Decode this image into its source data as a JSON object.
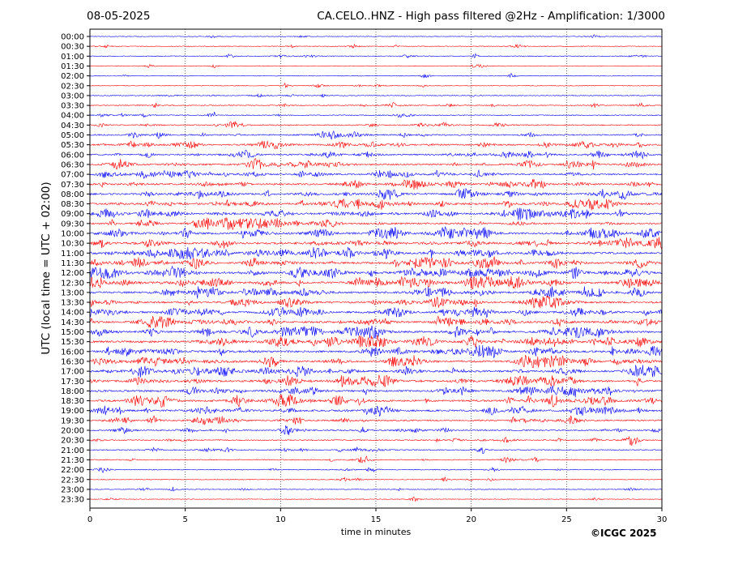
{
  "header": {
    "date": "08-05-2025",
    "title": "CA.CELO..HNZ - High pass filtered @2Hz - Amplification: 1/3000"
  },
  "footer": {
    "copyright": "©ICGC 2025"
  },
  "chart_data": {
    "type": "line",
    "xlabel": "time in minutes",
    "ylabel": "UTC (local time = UTC + 02:00)",
    "xlim": [
      0,
      30
    ],
    "x_ticks": [
      "0",
      "5",
      "10",
      "15",
      "20",
      "25",
      "30"
    ],
    "x_tick_values": [
      0,
      5,
      10,
      15,
      20,
      25,
      30
    ],
    "grid": "vertical dotted at each 5 minutes",
    "row_labels": [
      "00:00",
      "00:30",
      "01:00",
      "01:30",
      "02:00",
      "02:30",
      "03:00",
      "03:30",
      "04:00",
      "04:30",
      "05:00",
      "05:30",
      "06:00",
      "06:30",
      "07:00",
      "07:30",
      "08:00",
      "08:30",
      "09:00",
      "09:30",
      "10:00",
      "10:30",
      "11:00",
      "11:30",
      "12:00",
      "12:30",
      "13:00",
      "13:30",
      "14:00",
      "14:30",
      "15:00",
      "15:30",
      "16:00",
      "16:30",
      "17:00",
      "17:30",
      "18:00",
      "18:30",
      "19:00",
      "19:30",
      "20:00",
      "20:30",
      "21:00",
      "21:30",
      "22:00",
      "22:30",
      "23:00",
      "23:30"
    ],
    "trace_colors": [
      "#0000ff",
      "#ff0000"
    ],
    "activity_levels": [
      0.05,
      0.06,
      0.1,
      0.05,
      0.05,
      0.07,
      0.15,
      0.22,
      0.2,
      0.3,
      0.4,
      0.55,
      0.5,
      0.6,
      0.6,
      0.7,
      0.75,
      0.8,
      0.8,
      0.7,
      0.85,
      0.9,
      0.9,
      0.85,
      0.9,
      0.9,
      0.85,
      0.8,
      0.8,
      0.85,
      0.9,
      0.9,
      0.9,
      0.85,
      0.85,
      0.8,
      0.8,
      0.8,
      0.75,
      0.55,
      0.4,
      0.3,
      0.25,
      0.2,
      0.15,
      0.08,
      0.1,
      0.05
    ]
  }
}
